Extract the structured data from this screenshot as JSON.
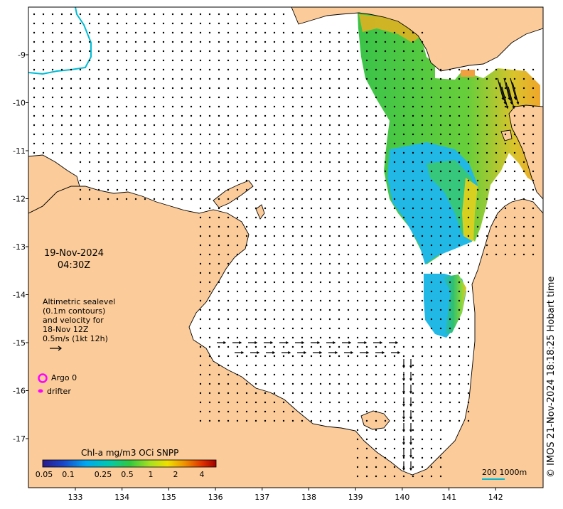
{
  "map": {
    "date": "19-Nov-2024",
    "time": "04:30Z",
    "info_lines": [
      "Altimetric sealevel",
      "(0.1m contours)",
      "and velocity for",
      "18-Nov 12Z",
      "0.5m/s (1kt 12h)"
    ],
    "legend": {
      "argo_label": "Argo 0",
      "argo_color": "#ff00ff",
      "drifter_label": "drifter",
      "drifter_color": "#ff00ff"
    },
    "colorbar": {
      "title": "Chl-a mg/m3 OCi SNPP",
      "ticks": [
        "0.05",
        "0.1",
        "0.25",
        "0.5",
        "1",
        "2",
        "4"
      ]
    },
    "scale_bar_label": "200  1000m",
    "credit": "© IMOS 21-Nov-2024 18:18:25 Hobart time",
    "axes": {
      "lon_ticks": [
        "133",
        "134",
        "135",
        "136",
        "137",
        "138",
        "139",
        "140",
        "141",
        "142"
      ],
      "lat_ticks": [
        "-9",
        "-10",
        "-11",
        "-12",
        "-13",
        "-14",
        "-15",
        "-16",
        "-17"
      ]
    },
    "colors": {
      "land": "#fbcb99",
      "ocean": "#ffffff",
      "coastline": "#000000",
      "bathy_contour": "#00bcd4",
      "scale_bar": "#00bcd4"
    }
  }
}
